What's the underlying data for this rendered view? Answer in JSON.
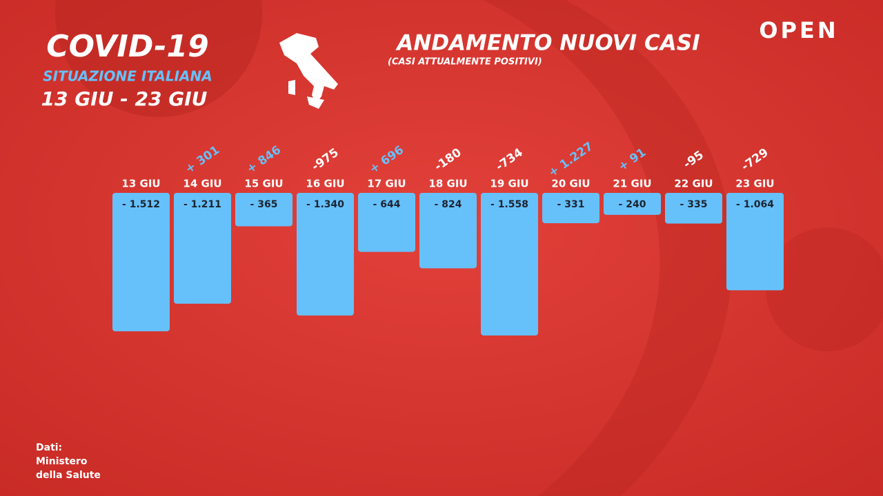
{
  "chart_data": {
    "type": "bar",
    "title": "ANDAMENTO NUOVI CASI",
    "subtitle": "(CASI ATTUALMENTE POSITIVI)",
    "header": {
      "title": "COVID-19",
      "subtitle": "SITUAZIONE ITALIANA",
      "period": "13 GIU - 23 GIU"
    },
    "brand": "OPEN",
    "source": [
      "Dati:",
      "Ministero",
      "della Salute"
    ],
    "categories": [
      "13 GIU",
      "14 GIU",
      "15 GIU",
      "16 GIU",
      "17 GIU",
      "18 GIU",
      "19 GIU",
      "20 GIU",
      "21 GIU",
      "22 GIU",
      "23 GIU"
    ],
    "values": [
      -1512,
      -1211,
      -365,
      -1340,
      -644,
      -824,
      -1558,
      -331,
      -240,
      -335,
      -1064
    ],
    "value_labels": [
      "- 1.512",
      "- 1.211",
      "- 365",
      "- 1.340",
      "- 644",
      "- 824",
      "- 1.558",
      "- 331",
      "- 240",
      "- 335",
      "- 1.064"
    ],
    "color": "#66c1fb",
    "changes": {
      "values": [
        null,
        301,
        846,
        -975,
        696,
        -180,
        -734,
        1227,
        91,
        -95,
        -729
      ],
      "value_labels": [
        null,
        "+ 301",
        "+ 846",
        "-975",
        "+ 696",
        "-180",
        "-734",
        "+ 1.227",
        "+ 91",
        "-95",
        "-729"
      ],
      "positive_color": "#66c1fb",
      "negative_color": "#ffffff"
    }
  }
}
